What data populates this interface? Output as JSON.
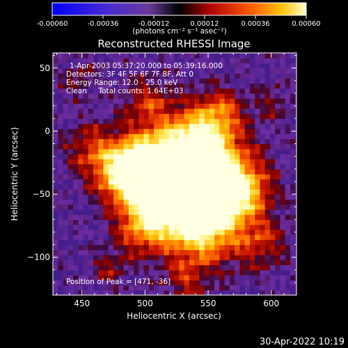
{
  "colorbar": {
    "ticks": [
      "-0.00060",
      "-0.00036",
      "-0.00012",
      "0.00012",
      "0.00036",
      "0.00060"
    ],
    "tick_values": [
      -0.0006,
      -0.00036,
      -0.00012,
      0.00012,
      0.00036,
      0.0006
    ],
    "units_label": "(photons cm⁻² s⁻¹ asec⁻²)"
  },
  "chart_data": {
    "type": "heatmap",
    "title": "Reconstructed RHESSI Image",
    "xlabel": "Heliocentric X (arcsec)",
    "ylabel": "Heliocentric Y (arcsec)",
    "xlim": [
      427,
      620
    ],
    "ylim": [
      -130,
      62
    ],
    "x_ticks": [
      450,
      500,
      550,
      600
    ],
    "y_ticks": [
      50,
      0,
      -50,
      -100
    ],
    "value_range": [
      -0.0006,
      0.0006
    ],
    "peak": [
      471,
      -36
    ],
    "annotations": {
      "time_range": "1-Apr-2003 05:37:20.000 to 05:39:16.000",
      "detectors": "Detectors: 3F 4F 5F 6F 7F 8F, Att 0",
      "energy": "Energy Range: 12.0 - 25.0 keV",
      "method": "Clean     Total counts: 1.64E+03",
      "peak_label": "Position of Peak = [471, -36]"
    }
  },
  "footer": {
    "timestamp": "30-Apr-2022 10:19"
  }
}
